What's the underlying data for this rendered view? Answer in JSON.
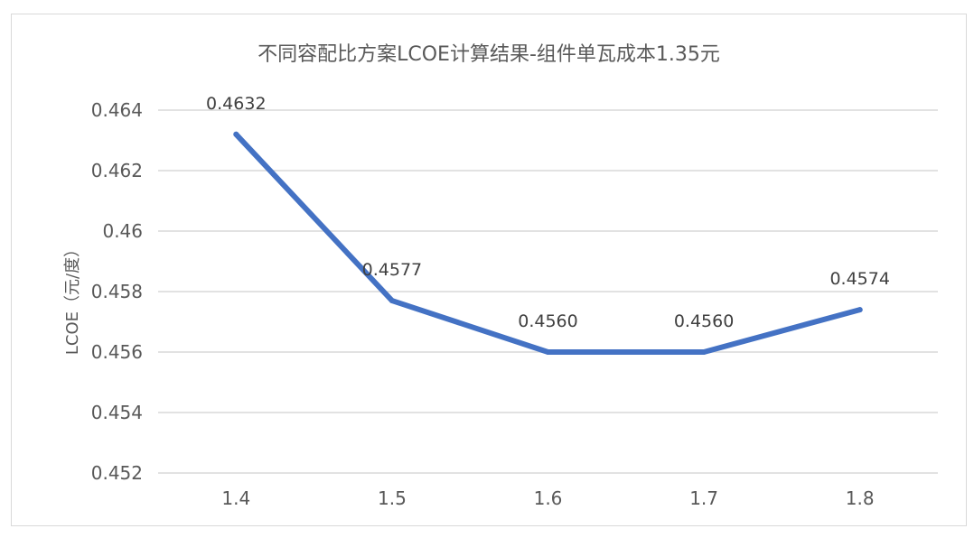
{
  "chart_data": {
    "type": "line",
    "title": "不同容配比方案LCOE计算结果-组件单瓦成本1.35元",
    "xlabel": "",
    "ylabel": "LCOE（元/度）",
    "categories": [
      "1.4",
      "1.5",
      "1.6",
      "1.7",
      "1.8"
    ],
    "series": [
      {
        "values": [
          0.4632,
          0.4577,
          0.456,
          0.456,
          0.4574
        ],
        "data_labels": [
          "0.4632",
          "0.4577",
          "0.4560",
          "0.4560",
          "0.4574"
        ],
        "color": "#4472C4"
      }
    ],
    "ylim": [
      0.452,
      0.464
    ],
    "yticks": [
      0.452,
      0.454,
      0.456,
      0.458,
      0.46,
      0.462,
      0.464
    ],
    "ytick_labels": [
      "0.452",
      "0.454",
      "0.456",
      "0.458",
      "0.46",
      "0.462",
      "0.464"
    ],
    "grid": "horizontal",
    "legend": "none"
  }
}
